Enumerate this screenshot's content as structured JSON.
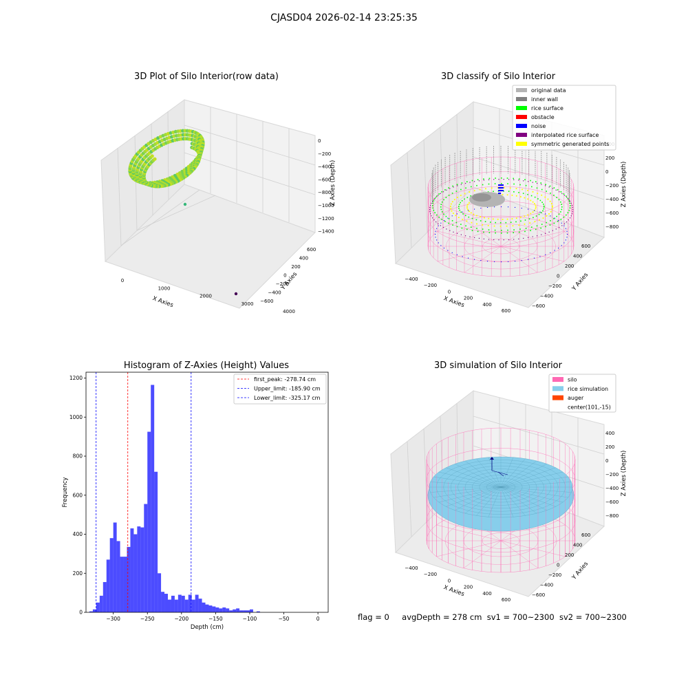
{
  "suptitle": "CJASD04 2026-02-14 23:25:35",
  "status": {
    "flag": "flag = 0",
    "avg": "avgDepth = 278 cm",
    "sv1": "sv1 = 700~2300",
    "sv2": "sv2 = 700~2300"
  },
  "plot_titles": {
    "raw": "3D Plot of Silo Interior(row data)",
    "classify": "3D classify of Silo Interior",
    "hist": "Histogram of Z-Axies (Height) Values",
    "sim": "3D simulation of Silo Interior"
  },
  "colors": {
    "original": "#b4b4b4",
    "inner_wall": "#808080",
    "rice_surface": "#00ff00",
    "obstacle": "#ff0000",
    "noise": "#0000ff",
    "interp": "#800080",
    "symmetric": "#ffff00",
    "silo": "#ff69b4",
    "rice_sim": "#87ceeb",
    "auger": "#ff4500",
    "hist_bar": "#0000ff",
    "first_peak": "#ff0000",
    "limits": "#0000ff"
  },
  "chart_data": [
    {
      "type": "scatter",
      "title": "3D Plot of Silo Interior(row data)",
      "xlabel": "X Axies",
      "ylabel": "Y Axies",
      "zlabel": "Z Axies (Depth)",
      "xticks": [
        "0",
        "1000",
        "2000",
        "3000",
        "4000"
      ],
      "yticks": [
        "600",
        "400",
        "200",
        "0",
        "−200",
        "−400",
        "−600"
      ],
      "zticks": [
        "0",
        "−200",
        "−400",
        "−600",
        "−800",
        "−1000",
        "−1200",
        "−1400"
      ]
    },
    {
      "type": "scatter",
      "title": "3D classify of Silo Interior",
      "xlabel": "X Axies",
      "ylabel": "Y Axies",
      "zlabel": "Z Axies (Depth)",
      "xticks": [
        "−400",
        "−200",
        "0",
        "200",
        "400",
        "600"
      ],
      "yticks": [
        "600",
        "400",
        "200",
        "0",
        "−200",
        "−400",
        "−600"
      ],
      "zticks": [
        "400",
        "200",
        "0",
        "−200",
        "−400",
        "−600",
        "−800"
      ],
      "legend": [
        {
          "label": "original data",
          "color": "#b4b4b4"
        },
        {
          "label": "inner wall",
          "color": "#808080"
        },
        {
          "label": "rice surface",
          "color": "#00ff00"
        },
        {
          "label": "obstacle",
          "color": "#ff0000"
        },
        {
          "label": "noise",
          "color": "#0000ff"
        },
        {
          "label": "interpolated rice surface",
          "color": "#800080"
        },
        {
          "label": "symmetric generated points",
          "color": "#ffff00"
        }
      ],
      "legend_position": "top-right"
    },
    {
      "type": "bar",
      "title": "Histogram of Z-Axies (Height) Values",
      "xlabel": "Depth (cm)",
      "ylabel": "Frequency",
      "xlim": [
        -340,
        15
      ],
      "ylim": [
        0,
        1230
      ],
      "xticks": [
        -300,
        -250,
        -200,
        -150,
        -100,
        -50,
        0
      ],
      "yticks": [
        0,
        200,
        400,
        600,
        800,
        1000,
        1200
      ],
      "bin_edges_start": -335,
      "bin_width": 5,
      "values": [
        5,
        15,
        50,
        85,
        155,
        270,
        380,
        460,
        365,
        285,
        285,
        335,
        430,
        400,
        440,
        435,
        555,
        925,
        1165,
        720,
        200,
        105,
        95,
        65,
        85,
        65,
        90,
        85,
        65,
        90,
        65,
        90,
        70,
        50,
        40,
        35,
        30,
        25,
        20,
        25,
        20,
        10,
        15,
        20,
        10,
        10,
        10,
        15,
        0,
        5,
        0
      ],
      "vlines": [
        {
          "label": "first_peak: -278.74 cm",
          "x": -278.74,
          "color": "#ff0000"
        },
        {
          "label": "Upper_limit: -185.90 cm",
          "x": -185.9,
          "color": "#0000ff"
        },
        {
          "label": "Lower_limit: -325.17 cm",
          "x": -325.17,
          "color": "#0000ff"
        }
      ],
      "legend_position": "top-right"
    },
    {
      "type": "scatter",
      "title": "3D simulation of Silo Interior",
      "xlabel": "X Axies",
      "ylabel": "Y Axies",
      "zlabel": "Z Axies (Depth)",
      "xticks": [
        "−400",
        "−200",
        "0",
        "200",
        "400",
        "600"
      ],
      "yticks": [
        "600",
        "400",
        "200",
        "0",
        "−200",
        "−400",
        "−600"
      ],
      "zticks": [
        "400",
        "200",
        "0",
        "−200",
        "−400",
        "−600",
        "−800"
      ],
      "legend": [
        {
          "label": "silo",
          "color": "#ff69b4"
        },
        {
          "label": "rice simulation",
          "color": "#87ceeb"
        },
        {
          "label": "auger",
          "color": "#ff4500"
        },
        {
          "label": "center(101,-15)",
          "color": ""
        }
      ],
      "legend_position": "top-right"
    }
  ]
}
